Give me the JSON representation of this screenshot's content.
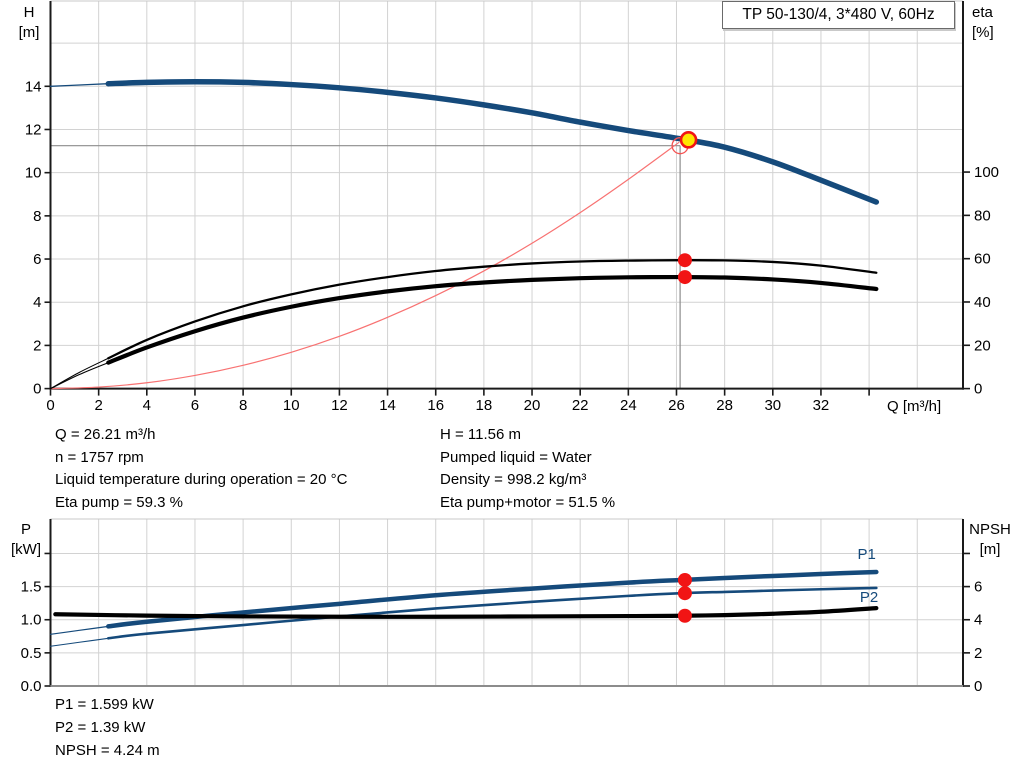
{
  "title_box": {
    "label": "TP 50-130/4, 3*480 V, 60Hz"
  },
  "info_block": {
    "left": [
      "Q = 26.21 m³/h",
      "n = 1757 rpm",
      "Liquid temperature during operation = 20 °C",
      "Eta pump = 59.3 %"
    ],
    "right": [
      "H = 11.56 m",
      "Pumped liquid = Water",
      "Density = 998.2 kg/m³",
      "Eta pump+motor = 51.5 %"
    ]
  },
  "result_block": [
    "P1 = 1.599 kW",
    "P2 = 1.39 kW",
    "NPSH = 4.24 m"
  ],
  "colors": {
    "curve_blue": "#154a7b",
    "curve_black": "#000000",
    "marker_red": "#f11414",
    "system_red": "#f87272",
    "duty_yellow": "#ffe600",
    "crosshair_gray": "#8c8c8c",
    "grid_gray": "#d2d2d2",
    "axis_dark": "#1a1a1a",
    "axis_gray": "#8c8c8c",
    "top_border": "#c8c8c8"
  },
  "chart_data": [
    {
      "type": "line",
      "name": "head-efficiency-chart",
      "x_axis": {
        "label": "Q [m³/h]",
        "min": 0,
        "max": 37.9,
        "ticks": [
          {
            "v": 0,
            "l": "0"
          },
          {
            "v": 2,
            "l": "2"
          },
          {
            "v": 4,
            "l": "4"
          },
          {
            "v": 6,
            "l": "6"
          },
          {
            "v": 8,
            "l": "8"
          },
          {
            "v": 10,
            "l": "10"
          },
          {
            "v": 12,
            "l": "12"
          },
          {
            "v": 14,
            "l": "14"
          },
          {
            "v": 16,
            "l": "16"
          },
          {
            "v": 18,
            "l": "18"
          },
          {
            "v": 20,
            "l": "20"
          },
          {
            "v": 22,
            "l": "22"
          },
          {
            "v": 24,
            "l": "24"
          },
          {
            "v": 26,
            "l": "26"
          },
          {
            "v": 28,
            "l": "28"
          },
          {
            "v": 30,
            "l": "30"
          },
          {
            "v": 32,
            "l": "32"
          },
          {
            "v": 34,
            "l": ""
          }
        ],
        "grid": [
          2,
          4,
          6,
          8,
          10,
          12,
          14,
          16,
          18,
          20,
          22,
          24,
          26,
          28,
          30,
          32,
          34,
          36
        ]
      },
      "y_left": {
        "unit": [
          "H",
          "[m]"
        ],
        "min": 0,
        "max": 17.95,
        "ticks": [
          {
            "v": 0,
            "l": "0"
          },
          {
            "v": 2,
            "l": "2"
          },
          {
            "v": 4,
            "l": "4"
          },
          {
            "v": 6,
            "l": "6"
          },
          {
            "v": 8,
            "l": "8"
          },
          {
            "v": 10,
            "l": "10"
          },
          {
            "v": 12,
            "l": "12"
          },
          {
            "v": 14,
            "l": "14"
          }
        ],
        "grid": [
          2,
          4,
          6,
          8,
          10,
          12,
          14,
          16
        ]
      },
      "y_right": {
        "unit": [
          "eta",
          "[%]"
        ],
        "min": 0,
        "max": 179,
        "ticks": [
          {
            "v": 0,
            "l": "0"
          },
          {
            "v": 20,
            "l": "20"
          },
          {
            "v": 40,
            "l": "40"
          },
          {
            "v": 60,
            "l": "60"
          },
          {
            "v": 80,
            "l": "80"
          },
          {
            "v": 100,
            "l": "100"
          }
        ]
      },
      "crosshair": {
        "q": 26.15,
        "v": 11.25,
        "axis": "left"
      },
      "series": [
        {
          "name": "H curve lead-in",
          "axis": "left",
          "color": "#154a7b",
          "width": 1.3,
          "points": [
            [
              0,
              14.0
            ],
            [
              1.2,
              14.06
            ],
            [
              2.4,
              14.12
            ]
          ]
        },
        {
          "name": "H curve (head)",
          "axis": "left",
          "color": "#154a7b",
          "width": 5.5,
          "points": [
            [
              2.4,
              14.12
            ],
            [
              4,
              14.18
            ],
            [
              6,
              14.21
            ],
            [
              8,
              14.18
            ],
            [
              10,
              14.08
            ],
            [
              12,
              13.93
            ],
            [
              14,
              13.72
            ],
            [
              16,
              13.46
            ],
            [
              18,
              13.14
            ],
            [
              20,
              12.77
            ],
            [
              22,
              12.34
            ],
            [
              24,
              11.95
            ],
            [
              26.21,
              11.56
            ],
            [
              28,
              11.18
            ],
            [
              30,
              10.5
            ],
            [
              32,
              9.65
            ],
            [
              34.3,
              8.64
            ]
          ]
        },
        {
          "name": "system curve",
          "axis": "left",
          "color": "#f87272",
          "width": 1.2,
          "points": [
            [
              0,
              0
            ],
            [
              2,
              0.07
            ],
            [
              4,
              0.27
            ],
            [
              6,
              0.61
            ],
            [
              8,
              1.08
            ],
            [
              10,
              1.68
            ],
            [
              12,
              2.42
            ],
            [
              14,
              3.3
            ],
            [
              16,
              4.31
            ],
            [
              18,
              5.45
            ],
            [
              20,
              6.73
            ],
            [
              22,
              8.15
            ],
            [
              24,
              9.69
            ],
            [
              26.1,
              11.4
            ]
          ]
        },
        {
          "name": "eta pump lead-in",
          "axis": "right",
          "color": "#000000",
          "width": 1.1,
          "points": [
            [
              0,
              0
            ],
            [
              1.2,
              7.5
            ],
            [
              2.4,
              14
            ]
          ]
        },
        {
          "name": "eta pump",
          "axis": "right",
          "color": "#000000",
          "width": 2.3,
          "points": [
            [
              2.4,
              14
            ],
            [
              4,
              22.5
            ],
            [
              6,
              31
            ],
            [
              8,
              38
            ],
            [
              10,
              43.5
            ],
            [
              12,
              48
            ],
            [
              14,
              51.5
            ],
            [
              16,
              54.3
            ],
            [
              18,
              56.3
            ],
            [
              20,
              57.8
            ],
            [
              22,
              58.7
            ],
            [
              24,
              59.1
            ],
            [
              26.21,
              59.3
            ],
            [
              28,
              59.2
            ],
            [
              30,
              58.5
            ],
            [
              32,
              56.8
            ],
            [
              34.3,
              53.5
            ]
          ]
        },
        {
          "name": "eta pump+motor lead-in",
          "axis": "right",
          "color": "#000000",
          "width": 1.1,
          "points": [
            [
              0,
              0
            ],
            [
              1.2,
              6.5
            ],
            [
              2.4,
              12
            ]
          ]
        },
        {
          "name": "eta pump+motor",
          "axis": "right",
          "color": "#000000",
          "width": 4.2,
          "points": [
            [
              2.4,
              12
            ],
            [
              4,
              19
            ],
            [
              6,
              26.5
            ],
            [
              8,
              32.8
            ],
            [
              10,
              37.8
            ],
            [
              12,
              41.8
            ],
            [
              14,
              44.9
            ],
            [
              16,
              47.3
            ],
            [
              18,
              49.0
            ],
            [
              20,
              50.2
            ],
            [
              22,
              51.0
            ],
            [
              24,
              51.4
            ],
            [
              26.21,
              51.5
            ],
            [
              28,
              51.3
            ],
            [
              30,
              50.4
            ],
            [
              32,
              48.8
            ],
            [
              34.3,
              46.0
            ]
          ]
        }
      ],
      "markers": [
        {
          "shape": "ring",
          "axis": "left",
          "q": 26.15,
          "v": 11.25,
          "r": 8,
          "stroke": "#f55454",
          "sw": 1.3
        },
        {
          "shape": "dot",
          "axis": "left",
          "q": 26.5,
          "v": 11.52,
          "r": 7.5,
          "fill": "#ffe600",
          "stroke": "#f11414",
          "sw": 2.6
        },
        {
          "shape": "dot",
          "axis": "right",
          "q": 26.35,
          "v": 59.3,
          "r": 7,
          "fill": "#f11414"
        },
        {
          "shape": "dot",
          "axis": "right",
          "q": 26.35,
          "v": 51.5,
          "r": 7,
          "fill": "#f11414"
        }
      ],
      "annotations": []
    },
    {
      "type": "line",
      "name": "power-npsh-chart",
      "x_axis": {
        "label": "",
        "min": 0,
        "max": 37.9,
        "ticks": [],
        "grid": [
          2,
          4,
          6,
          8,
          10,
          12,
          14,
          16,
          18,
          20,
          22,
          24,
          26,
          28,
          30,
          32,
          34,
          36
        ]
      },
      "y_left": {
        "unit": [
          "P",
          "[kW]"
        ],
        "min": 0,
        "max": 2.52,
        "ticks": [
          {
            "v": 0,
            "l": "0.0"
          },
          {
            "v": 0.5,
            "l": "0.5"
          },
          {
            "v": 1.0,
            "l": "1.0"
          },
          {
            "v": 1.5,
            "l": "1.5"
          },
          {
            "v": 2.0,
            "l": ""
          }
        ],
        "grid": [
          0.5,
          1.0,
          1.5,
          2.0
        ]
      },
      "y_right": {
        "unit": [
          "NPSH",
          "[m]"
        ],
        "min": 0,
        "max": 10.08,
        "ticks": [
          {
            "v": 0,
            "l": "0"
          },
          {
            "v": 2,
            "l": "2"
          },
          {
            "v": 4,
            "l": "4"
          },
          {
            "v": 6,
            "l": "6"
          },
          {
            "v": 8,
            "l": ""
          }
        ]
      },
      "crosshair": null,
      "series": [
        {
          "name": "P1 lead-in",
          "axis": "left",
          "color": "#154a7b",
          "width": 1.2,
          "points": [
            [
              0,
              0.78
            ],
            [
              1.2,
              0.84
            ],
            [
              2.4,
              0.9
            ]
          ]
        },
        {
          "name": "P1 power input",
          "axis": "left",
          "color": "#154a7b",
          "width": 4.5,
          "points": [
            [
              2.4,
              0.9
            ],
            [
              4,
              0.97
            ],
            [
              8,
              1.11
            ],
            [
              12,
              1.24
            ],
            [
              16,
              1.37
            ],
            [
              20,
              1.47
            ],
            [
              24,
              1.56
            ],
            [
              26.21,
              1.6
            ],
            [
              28,
              1.63
            ],
            [
              30,
              1.66
            ],
            [
              32,
              1.69
            ],
            [
              34.3,
              1.72
            ]
          ]
        },
        {
          "name": "P2 lead-in",
          "axis": "left",
          "color": "#154a7b",
          "width": 1.1,
          "points": [
            [
              0,
              0.6
            ],
            [
              1.2,
              0.66
            ],
            [
              2.4,
              0.72
            ]
          ]
        },
        {
          "name": "P2 shaft power",
          "axis": "left",
          "color": "#154a7b",
          "width": 2.6,
          "points": [
            [
              2.4,
              0.72
            ],
            [
              4,
              0.79
            ],
            [
              8,
              0.92
            ],
            [
              12,
              1.05
            ],
            [
              16,
              1.17
            ],
            [
              20,
              1.27
            ],
            [
              24,
              1.36
            ],
            [
              26.21,
              1.4
            ],
            [
              28,
              1.42
            ],
            [
              30,
              1.44
            ],
            [
              32,
              1.46
            ],
            [
              34.3,
              1.48
            ]
          ]
        },
        {
          "name": "NPSH curve",
          "axis": "right",
          "color": "#000000",
          "width": 4.2,
          "points": [
            [
              0.2,
              4.33
            ],
            [
              4,
              4.25
            ],
            [
              8,
              4.2
            ],
            [
              12,
              4.18
            ],
            [
              16,
              4.18
            ],
            [
              20,
              4.2
            ],
            [
              24,
              4.22
            ],
            [
              26.21,
              4.24
            ],
            [
              28,
              4.28
            ],
            [
              30,
              4.36
            ],
            [
              32,
              4.48
            ],
            [
              34.3,
              4.7
            ]
          ]
        }
      ],
      "markers": [
        {
          "shape": "dot",
          "axis": "left",
          "q": 26.35,
          "v": 1.6,
          "r": 7,
          "fill": "#f11414"
        },
        {
          "shape": "dot",
          "axis": "left",
          "q": 26.35,
          "v": 1.4,
          "r": 7,
          "fill": "#f11414"
        },
        {
          "shape": "dot",
          "axis": "right",
          "q": 26.35,
          "v": 4.24,
          "r": 7,
          "fill": "#f11414"
        }
      ],
      "annotations": [
        {
          "text": "P1",
          "q": 33.9,
          "v": 1.99,
          "axis": "left",
          "color": "#154a7b"
        },
        {
          "text": "P2",
          "q": 34.0,
          "v": 1.34,
          "axis": "left",
          "color": "#154a7b"
        }
      ]
    }
  ]
}
